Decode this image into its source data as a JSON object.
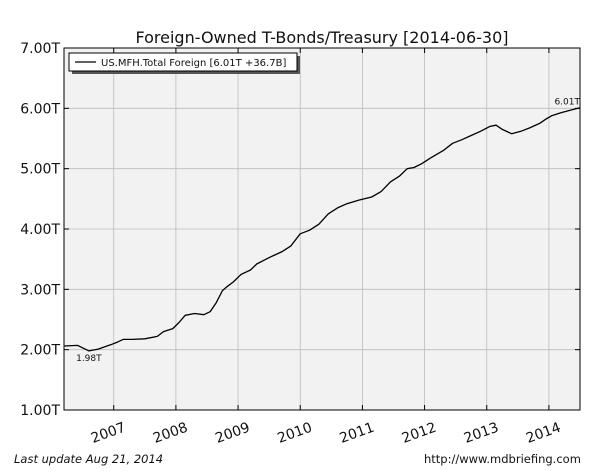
{
  "chart_data": {
    "type": "line",
    "title": "Foreign-Owned T-Bonds/Treasury  [2014-06-30]",
    "xlabel": "",
    "ylabel": "",
    "xlim": [
      2006.2,
      2014.5
    ],
    "ylim": [
      1.0,
      7.0
    ],
    "yticks": [
      1,
      2,
      3,
      4,
      5,
      6,
      7
    ],
    "ytick_labels": [
      "1.00T",
      "2.00T",
      "3.00T",
      "4.00T",
      "5.00T",
      "6.00T",
      "7.00T"
    ],
    "xticks": [
      2007,
      2008,
      2009,
      2010,
      2011,
      2012,
      2013,
      2014
    ],
    "xtick_labels": [
      "2007",
      "2008",
      "2009",
      "2010",
      "2011",
      "2012",
      "2013",
      "2014"
    ],
    "grid": true,
    "legend_position": "top-left",
    "series": [
      {
        "name": "US.MFH.Total Foreign [6.01T +36.7B]",
        "color": "#000000",
        "x": [
          2006.2,
          2006.42,
          2006.6,
          2006.75,
          2006.95,
          2007.05,
          2007.15,
          2007.3,
          2007.5,
          2007.7,
          2007.8,
          2007.95,
          2008.05,
          2008.15,
          2008.3,
          2008.45,
          2008.55,
          2008.65,
          2008.75,
          2008.83,
          2008.92,
          2009.05,
          2009.2,
          2009.3,
          2009.45,
          2009.55,
          2009.7,
          2009.85,
          2010.0,
          2010.15,
          2010.3,
          2010.45,
          2010.6,
          2010.75,
          2010.95,
          2011.15,
          2011.3,
          2011.45,
          2011.6,
          2011.72,
          2011.83,
          2011.95,
          2012.1,
          2012.3,
          2012.45,
          2012.6,
          2012.75,
          2012.9,
          2013.05,
          2013.15,
          2013.25,
          2013.4,
          2013.55,
          2013.7,
          2013.85,
          2013.95,
          2014.05,
          2014.2,
          2014.35,
          2014.5
        ],
        "values": [
          2.06,
          2.07,
          1.98,
          2.01,
          2.08,
          2.12,
          2.17,
          2.17,
          2.18,
          2.22,
          2.3,
          2.35,
          2.45,
          2.57,
          2.6,
          2.58,
          2.63,
          2.78,
          2.98,
          3.05,
          3.12,
          3.25,
          3.32,
          3.42,
          3.5,
          3.55,
          3.62,
          3.72,
          3.92,
          3.98,
          4.08,
          4.25,
          4.35,
          4.42,
          4.48,
          4.53,
          4.62,
          4.78,
          4.88,
          5.0,
          5.02,
          5.08,
          5.18,
          5.3,
          5.42,
          5.48,
          5.55,
          5.62,
          5.7,
          5.72,
          5.65,
          5.58,
          5.62,
          5.68,
          5.75,
          5.82,
          5.88,
          5.93,
          5.97,
          6.01
        ]
      }
    ],
    "annotations": [
      {
        "text": "1.98T",
        "x": 2006.6,
        "y": 1.98
      },
      {
        "text": "6.01T",
        "x": 2014.5,
        "y": 6.01
      }
    ]
  },
  "footer": {
    "last_update": "Last update Aug 21, 2014",
    "url": "http://www.mdbriefing.com"
  }
}
